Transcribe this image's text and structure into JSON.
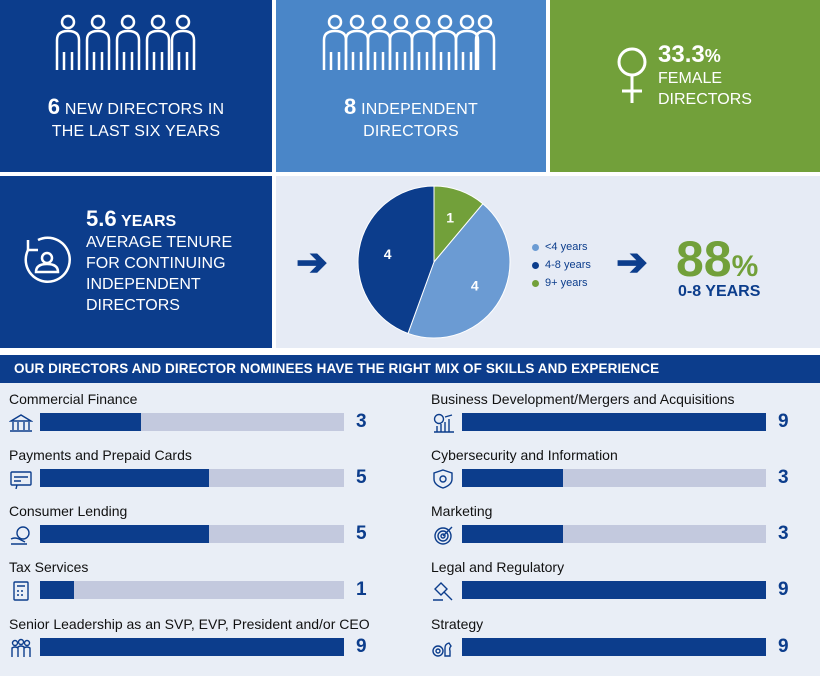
{
  "stats": {
    "new_directors": {
      "number": "6",
      "line1": "NEW DIRECTORS IN",
      "line2": "THE LAST SIX YEARS"
    },
    "independent": {
      "number": "8",
      "line1": "INDEPENDENT",
      "line2": "DIRECTORS"
    },
    "female": {
      "number": "33.3",
      "pct": "%",
      "line1": "FEMALE",
      "line2": "DIRECTORS"
    }
  },
  "tenure": {
    "number": "5.6",
    "unit": "YEARS",
    "line1": "AVERAGE TENURE",
    "line2": "FOR CONTINUING",
    "line3": "INDEPENDENT",
    "line4": "DIRECTORS"
  },
  "summary": {
    "number": "88",
    "pct": "%",
    "label": "0-8 YEARS"
  },
  "colors": {
    "navy": "#0c3d8c",
    "midblue": "#6b9bd3",
    "green": "#72a03a"
  },
  "chart_data": [
    {
      "type": "pie",
      "title": "",
      "categories": [
        "<4 years",
        "4-8 years",
        "9+ years"
      ],
      "values": [
        4,
        4,
        1
      ],
      "colors": [
        "#6b9bd3",
        "#0c3d8c",
        "#72a03a"
      ]
    },
    {
      "type": "bar",
      "title": "OUR DIRECTORS AND DIRECTOR NOMINEES HAVE THE RIGHT MIX OF SKILLS AND EXPERIENCE",
      "xlim": [
        0,
        9
      ],
      "series": [
        {
          "name": "Commercial Finance",
          "value": 3,
          "icon": "bank-icon"
        },
        {
          "name": "Payments and Prepaid Cards",
          "value": 5,
          "icon": "card-icon"
        },
        {
          "name": "Consumer Lending",
          "value": 5,
          "icon": "lending-icon"
        },
        {
          "name": "Tax Services",
          "value": 1,
          "icon": "calculator-icon"
        },
        {
          "name": "Senior Leadership as an SVP, EVP, President and/or CEO",
          "value": 9,
          "icon": "group-icon"
        },
        {
          "name": "Business Development/Mergers and Acquisitions",
          "value": 9,
          "icon": "growth-icon"
        },
        {
          "name": "Cybersecurity and Information",
          "value": 3,
          "icon": "shield-icon"
        },
        {
          "name": "Marketing",
          "value": 3,
          "icon": "target-icon"
        },
        {
          "name": "Legal and Regulatory",
          "value": 9,
          "icon": "gavel-icon"
        },
        {
          "name": "Strategy",
          "value": 9,
          "icon": "strategy-icon"
        }
      ]
    }
  ]
}
